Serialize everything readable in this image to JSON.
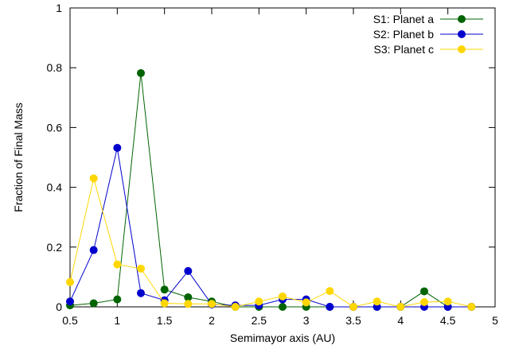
{
  "chart_data": {
    "type": "line",
    "title": "",
    "xlabel": "Semimayor axis (AU)",
    "ylabel": "Fraction of Final Mass",
    "xlim": [
      0.5,
      5
    ],
    "ylim": [
      0,
      1
    ],
    "xticks": [
      0.5,
      1,
      1.5,
      2,
      2.5,
      3,
      3.5,
      4,
      4.5,
      5
    ],
    "xtick_labels": [
      "0.5",
      "1",
      "1.5",
      "2",
      "2.5",
      "3",
      "3.5",
      "4",
      "4.5",
      "5"
    ],
    "yticks": [
      0,
      0.2,
      0.4,
      0.6,
      0.8,
      1
    ],
    "ytick_labels": [
      "0",
      "0.2",
      "0.4",
      "0.6",
      "0.8",
      "1"
    ],
    "grid": false,
    "legend_position": "top-right",
    "x": [
      0.5,
      0.75,
      1.0,
      1.25,
      1.5,
      1.75,
      2.0,
      2.25,
      2.5,
      2.75,
      3.0,
      3.25,
      3.5,
      3.75,
      4.0,
      4.25,
      4.5,
      4.75
    ],
    "series": [
      {
        "name": "S1: Planet a",
        "color": "#006400",
        "values": [
          0.005,
          0.012,
          0.025,
          0.782,
          0.058,
          0.032,
          0.018,
          0.0,
          0.0,
          0.0,
          0.0,
          0.0,
          0.0,
          0.0,
          0.0,
          0.052,
          0.0,
          0.0
        ]
      },
      {
        "name": "S2: Planet b",
        "color": "#0000cd",
        "values": [
          0.018,
          0.19,
          0.532,
          0.046,
          0.022,
          0.12,
          0.008,
          0.005,
          0.005,
          0.025,
          0.025,
          0.0,
          0.0,
          0.0,
          0.0,
          0.0,
          0.0,
          0.0
        ]
      },
      {
        "name": "S3: Planet c",
        "color": "#ffd700",
        "values": [
          0.083,
          0.43,
          0.142,
          0.128,
          0.012,
          0.01,
          0.01,
          0.0,
          0.018,
          0.035,
          0.015,
          0.053,
          0.0,
          0.018,
          0.0,
          0.016,
          0.018,
          0.0
        ]
      }
    ]
  }
}
